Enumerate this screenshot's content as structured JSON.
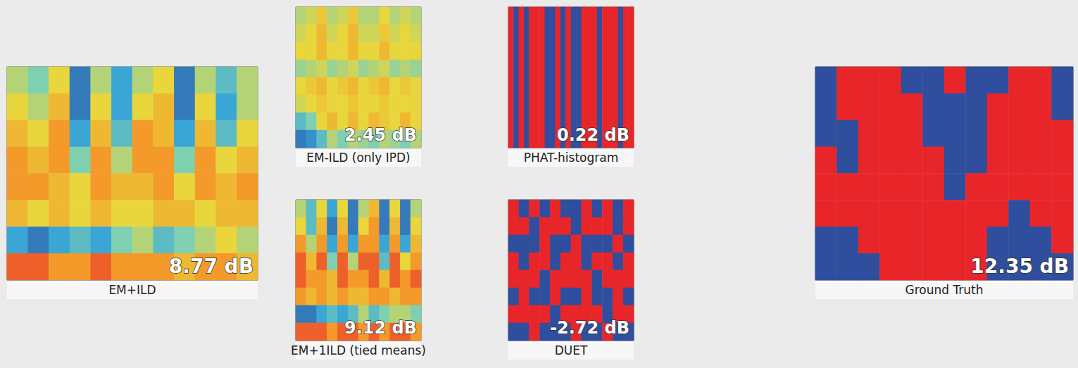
{
  "chart_data": [
    {
      "type": "heatmap",
      "title": "EM+ILD",
      "annotation": "8.77 dB",
      "color_range": [
        0,
        1
      ],
      "tick_labels": false,
      "cells": [
        [
          0.5,
          0.4,
          0.6,
          0.1,
          0.5,
          0.2,
          0.5,
          0.6,
          0.1,
          0.5,
          0.3,
          0.5
        ],
        [
          0.6,
          0.5,
          0.7,
          0.1,
          0.6,
          0.2,
          0.6,
          0.7,
          0.1,
          0.6,
          0.2,
          0.5
        ],
        [
          0.7,
          0.6,
          0.8,
          0.2,
          0.7,
          0.3,
          0.8,
          0.7,
          0.2,
          0.7,
          0.3,
          0.6
        ],
        [
          0.8,
          0.7,
          0.8,
          0.4,
          0.8,
          0.5,
          0.8,
          0.8,
          0.4,
          0.8,
          0.6,
          0.7
        ],
        [
          0.8,
          0.8,
          0.7,
          0.6,
          0.8,
          0.7,
          0.7,
          0.8,
          0.6,
          0.8,
          0.7,
          0.8
        ],
        [
          0.7,
          0.6,
          0.7,
          0.6,
          0.7,
          0.6,
          0.6,
          0.7,
          0.7,
          0.6,
          0.7,
          0.7
        ],
        [
          0.2,
          0.1,
          0.2,
          0.3,
          0.2,
          0.4,
          0.5,
          0.3,
          0.4,
          0.5,
          0.6,
          0.5
        ],
        [
          0.9,
          0.9,
          0.8,
          0.8,
          0.9,
          0.8,
          0.8,
          0.8,
          0.7,
          0.8,
          0.8,
          0.7
        ]
      ]
    },
    {
      "type": "heatmap",
      "title": "EM-ILD (only IPD)",
      "annotation": "2.45 dB",
      "color_range": [
        0,
        1
      ],
      "tick_labels": false,
      "cells": [
        [
          0.5,
          0.55,
          0.65,
          0.5,
          0.55,
          0.65,
          0.5,
          0.5,
          0.6,
          0.5,
          0.55,
          0.5
        ],
        [
          0.55,
          0.6,
          0.7,
          0.55,
          0.6,
          0.7,
          0.55,
          0.55,
          0.65,
          0.55,
          0.6,
          0.55
        ],
        [
          0.6,
          0.6,
          0.7,
          0.6,
          0.6,
          0.7,
          0.6,
          0.6,
          0.7,
          0.6,
          0.6,
          0.6
        ],
        [
          0.45,
          0.5,
          0.55,
          0.45,
          0.5,
          0.55,
          0.45,
          0.5,
          0.55,
          0.45,
          0.5,
          0.45
        ],
        [
          0.6,
          0.65,
          0.7,
          0.6,
          0.65,
          0.7,
          0.6,
          0.65,
          0.7,
          0.6,
          0.65,
          0.6
        ],
        [
          0.55,
          0.6,
          0.65,
          0.6,
          0.6,
          0.65,
          0.6,
          0.6,
          0.65,
          0.6,
          0.6,
          0.6
        ],
        [
          0.3,
          0.4,
          0.6,
          0.7,
          0.6,
          0.7,
          0.6,
          0.7,
          0.65,
          0.6,
          0.7,
          0.6
        ],
        [
          0.1,
          0.15,
          0.3,
          0.5,
          0.4,
          0.5,
          0.45,
          0.4,
          0.5,
          0.45,
          0.4,
          0.5
        ]
      ]
    },
    {
      "type": "heatmap",
      "title": "PHAT-histogram",
      "annotation": "0.22 dB",
      "color_range": [
        0,
        1
      ],
      "tick_labels": false,
      "cells": [
        [
          1,
          0,
          1,
          0,
          1,
          1,
          1,
          0,
          0,
          1,
          0,
          1,
          0,
          0,
          1,
          1,
          1,
          0,
          1,
          1,
          1,
          0,
          1,
          1
        ]
      ]
    },
    {
      "type": "heatmap",
      "title": "EM+1ILD (tied means)",
      "annotation": "9.12 dB",
      "color_range": [
        0,
        1
      ],
      "tick_labels": false,
      "cells": [
        [
          0.5,
          0.3,
          0.6,
          0.2,
          0.6,
          0.1,
          0.5,
          0.7,
          0.1,
          0.6,
          0.1,
          0.5
        ],
        [
          0.6,
          0.3,
          0.7,
          0.1,
          0.7,
          0.1,
          0.6,
          0.8,
          0.1,
          0.7,
          0.1,
          0.6
        ],
        [
          0.8,
          0.5,
          0.8,
          0.2,
          0.8,
          0.2,
          0.8,
          0.8,
          0.2,
          0.8,
          0.2,
          0.7
        ],
        [
          0.9,
          0.7,
          0.9,
          0.4,
          0.9,
          0.5,
          0.9,
          0.9,
          0.3,
          0.9,
          0.6,
          0.8
        ],
        [
          0.9,
          0.8,
          0.8,
          0.7,
          0.9,
          0.8,
          0.8,
          0.9,
          0.7,
          0.9,
          0.8,
          0.9
        ],
        [
          0.8,
          0.7,
          0.8,
          0.7,
          0.8,
          0.7,
          0.7,
          0.8,
          0.8,
          0.7,
          0.8,
          0.8
        ],
        [
          0.1,
          0.1,
          0.2,
          0.3,
          0.2,
          0.3,
          0.5,
          0.3,
          0.4,
          0.5,
          0.5,
          0.4
        ],
        [
          0.9,
          0.9,
          0.9,
          0.8,
          0.9,
          0.9,
          0.8,
          0.9,
          0.8,
          0.9,
          0.9,
          0.8
        ]
      ]
    },
    {
      "type": "heatmap",
      "title": "DUET",
      "annotation": "-2.72 dB",
      "color_range": [
        0,
        1
      ],
      "tick_labels": false,
      "cells": [
        [
          1,
          0,
          1,
          0,
          1,
          0,
          0,
          1,
          0,
          1,
          0,
          1
        ],
        [
          1,
          1,
          0,
          1,
          1,
          1,
          0,
          1,
          1,
          1,
          0,
          1
        ],
        [
          0,
          0,
          0,
          1,
          0,
          0,
          1,
          0,
          0,
          0,
          1,
          0
        ],
        [
          1,
          0,
          1,
          1,
          0,
          1,
          1,
          0,
          1,
          1,
          0,
          1
        ],
        [
          1,
          1,
          1,
          0,
          1,
          1,
          1,
          1,
          0,
          1,
          1,
          1
        ],
        [
          0,
          1,
          0,
          0,
          1,
          0,
          0,
          1,
          0,
          0,
          1,
          0
        ],
        [
          1,
          1,
          1,
          1,
          0,
          1,
          1,
          1,
          1,
          0,
          1,
          1
        ],
        [
          0,
          0,
          1,
          0,
          0,
          0,
          1,
          0,
          0,
          1,
          0,
          0
        ]
      ]
    },
    {
      "type": "heatmap",
      "title": "Ground Truth",
      "annotation": "12.35 dB",
      "color_range": [
        0,
        1
      ],
      "tick_labels": false,
      "cells": [
        [
          0,
          1,
          1,
          1,
          0,
          0,
          1,
          0,
          0,
          1,
          1,
          0
        ],
        [
          0,
          1,
          1,
          1,
          1,
          0,
          0,
          0,
          1,
          1,
          1,
          0
        ],
        [
          0,
          0,
          1,
          1,
          1,
          0,
          0,
          0,
          1,
          1,
          1,
          1
        ],
        [
          1,
          0,
          1,
          1,
          1,
          1,
          0,
          0,
          1,
          1,
          1,
          1
        ],
        [
          1,
          1,
          1,
          1,
          1,
          1,
          0,
          1,
          1,
          1,
          1,
          1
        ],
        [
          1,
          1,
          1,
          1,
          1,
          1,
          1,
          1,
          1,
          0,
          1,
          1
        ],
        [
          0,
          0,
          1,
          1,
          1,
          1,
          1,
          1,
          0,
          0,
          0,
          1
        ],
        [
          0,
          0,
          0,
          1,
          1,
          1,
          1,
          1,
          0,
          0,
          0,
          0
        ]
      ]
    }
  ]
}
